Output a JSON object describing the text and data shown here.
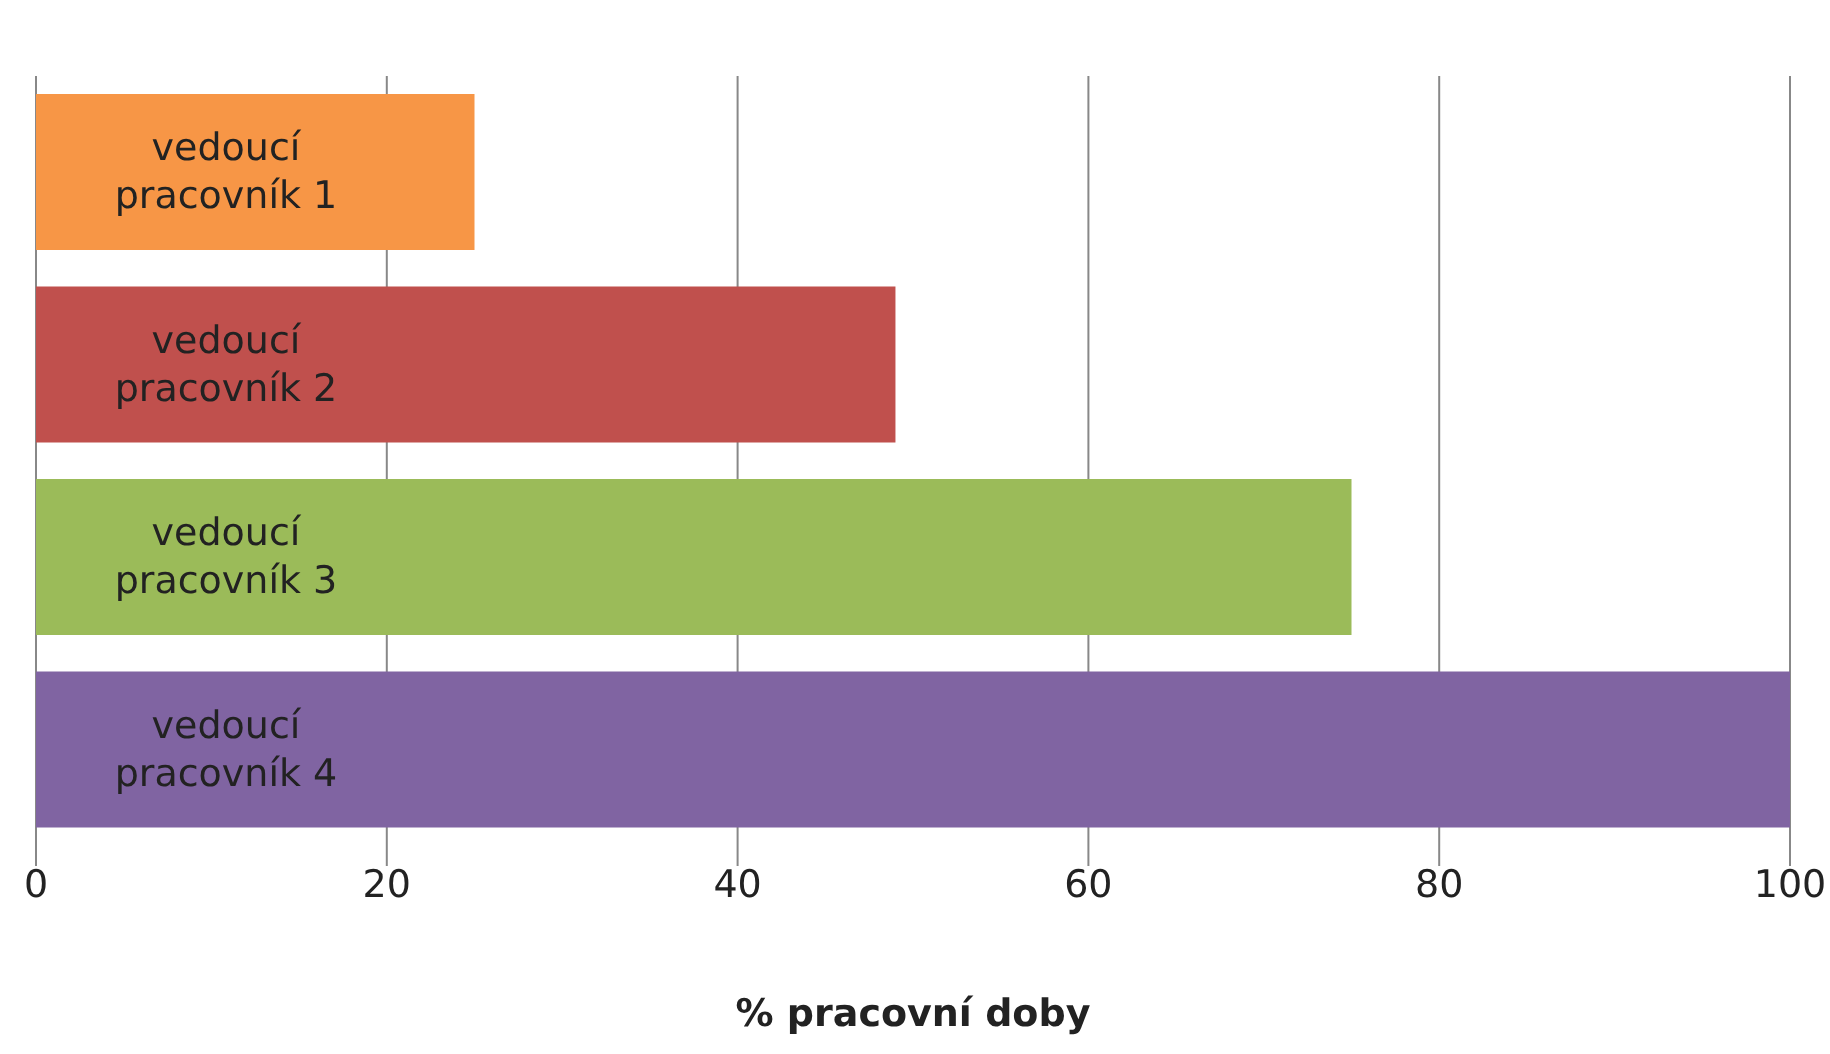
{
  "chart_data": {
    "type": "bar",
    "orientation": "horizontal",
    "xlabel": "% pracovní doby",
    "categories": [
      "vedoucí pracovník 1",
      "vedoucí pracovník 2",
      "vedoucí pracovník 3",
      "vedoucí pracovník 4"
    ],
    "values": [
      25,
      49,
      75,
      100
    ],
    "colors": [
      "#f79646",
      "#c0504d",
      "#9bbb59",
      "#8064a2"
    ],
    "xlim": [
      0,
      100
    ],
    "xticks": [
      0,
      20,
      40,
      60,
      80,
      100
    ],
    "grid": "x"
  }
}
